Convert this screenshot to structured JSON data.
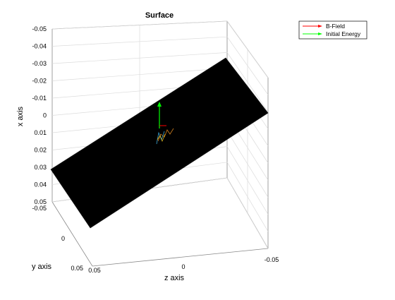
{
  "chart_data": {
    "type": "surface",
    "title": "Surface",
    "xlabel": "x axis",
    "ylabel": "y axis",
    "zlabel": "z axis",
    "x_ticks": [
      "-0.05",
      "-0.04",
      "-0.03",
      "-0.02",
      "-0.01",
      "0",
      "0.01",
      "0.02",
      "0.03",
      "0.04",
      "0.05"
    ],
    "y_ticks": [
      "-0.05",
      "0",
      "0.05"
    ],
    "z_ticks": [
      "0.05",
      "0",
      "-0.05"
    ],
    "xlim": [
      -0.05,
      0.05
    ],
    "ylim": [
      -0.05,
      0.05
    ],
    "zlim": [
      -0.05,
      0.05
    ],
    "grid": true,
    "legend_position": "top-right",
    "legend": [
      {
        "label": "B-Field",
        "color": "#ff0000"
      },
      {
        "label": "Initial Energy",
        "color": "#00ff00"
      }
    ],
    "surface_color": "#000000"
  }
}
